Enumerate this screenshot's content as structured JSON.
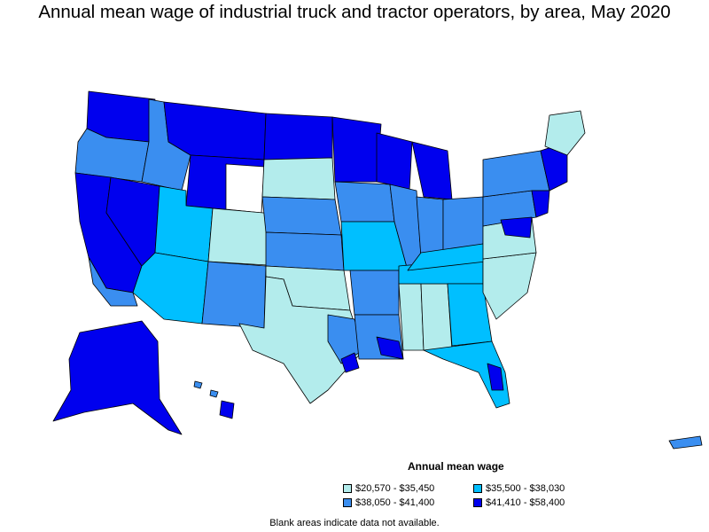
{
  "title": "Annual mean wage of industrial truck and tractor operators, by area, May 2020",
  "legend": {
    "title": "Annual mean wage",
    "items": [
      {
        "label": "$20,570 - $35,450",
        "color": "#b3ecec"
      },
      {
        "label": "$35,500 - $38,030",
        "color": "#00bfff"
      },
      {
        "label": "$38,050 - $41,400",
        "color": "#3a8ef0"
      },
      {
        "label": "$41,410 - $58,400",
        "color": "#0000ee"
      }
    ]
  },
  "note": "Blank areas indicate data not available.",
  "colors": {
    "border": "#000000",
    "no_data": "#ffffff"
  }
}
